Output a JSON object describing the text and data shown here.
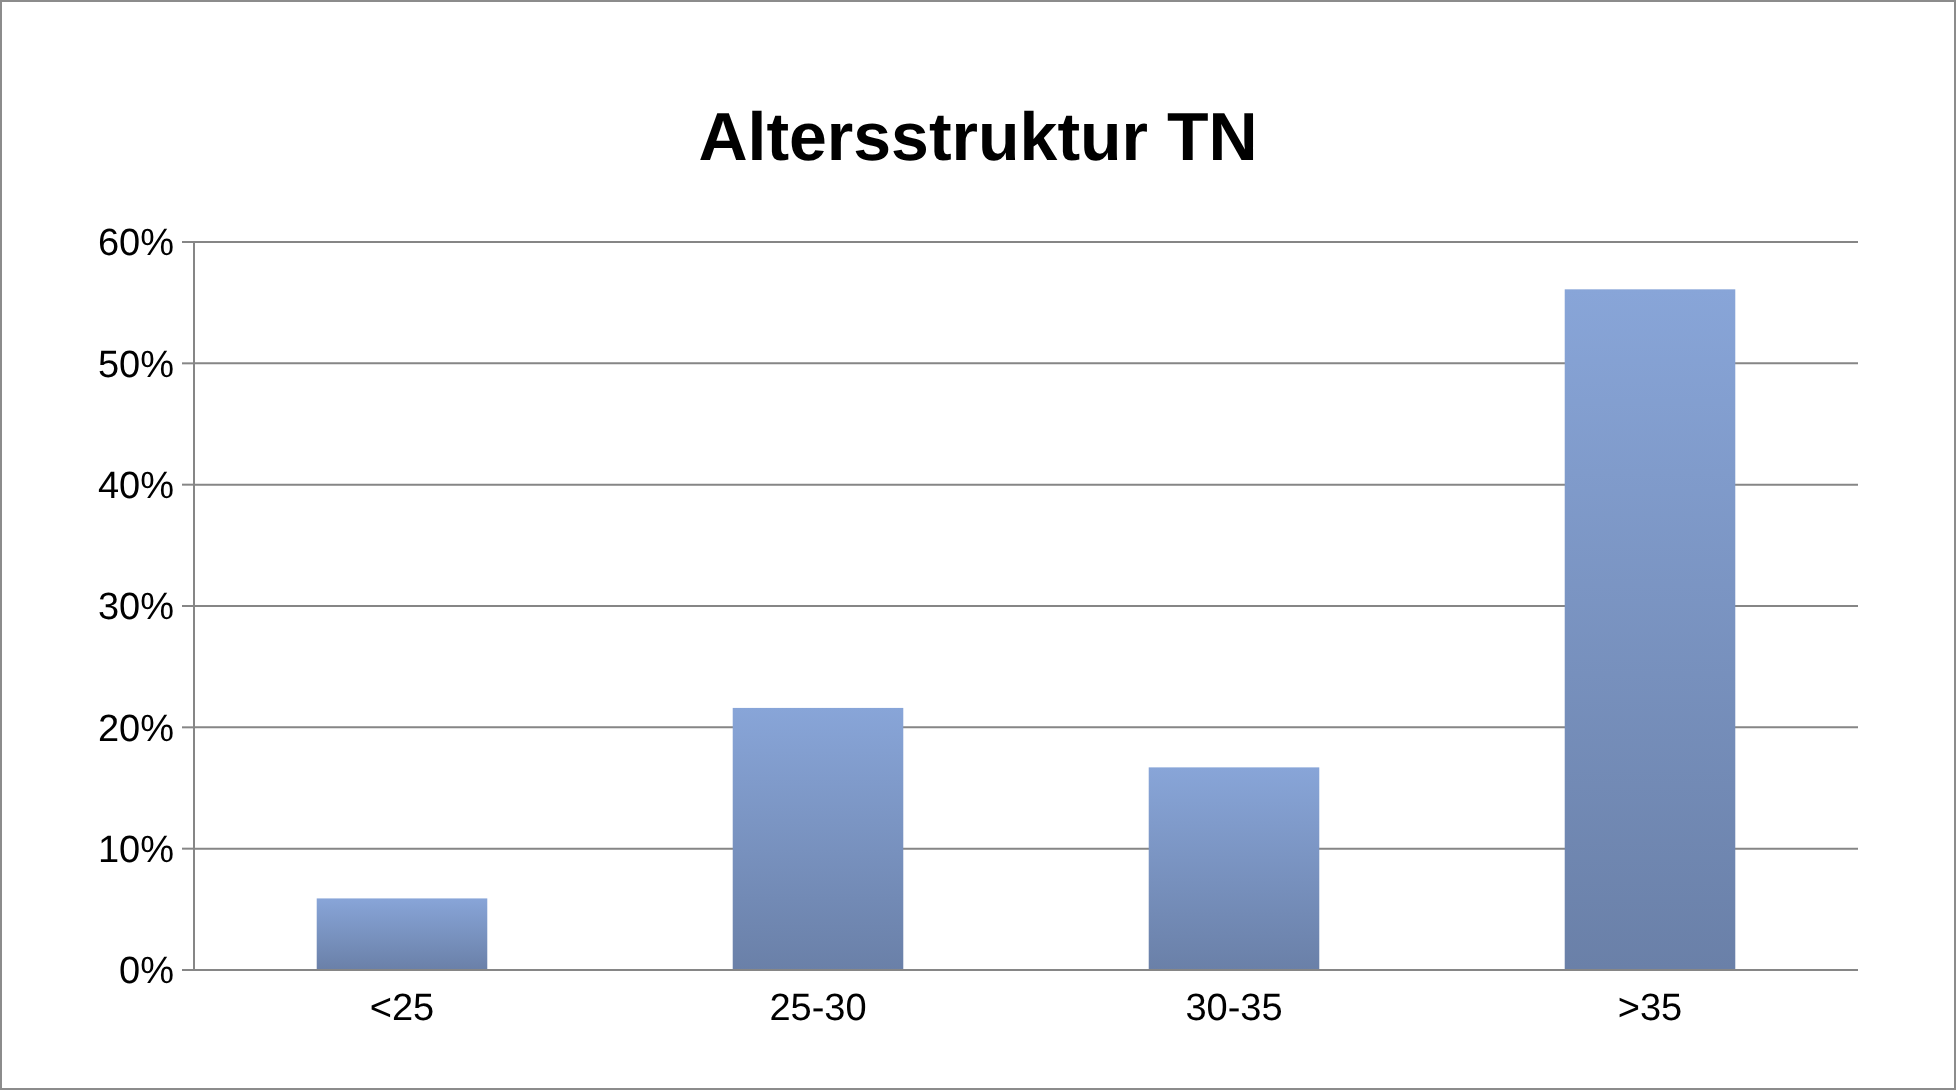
{
  "chart_data": {
    "type": "bar",
    "title": "Altersstruktur TN",
    "categories": [
      "<25",
      "25-30",
      "30-35",
      ">35"
    ],
    "values": [
      5.9,
      21.6,
      16.7,
      56.1
    ],
    "color": "#7a94c2",
    "ylim": [
      0,
      60
    ],
    "yticks": [
      {
        "value": 0,
        "label": "0%"
      },
      {
        "value": 10,
        "label": "10%"
      },
      {
        "value": 20,
        "label": "20%"
      },
      {
        "value": 30,
        "label": "30%"
      },
      {
        "value": 40,
        "label": "40%"
      },
      {
        "value": 50,
        "label": "50%"
      },
      {
        "value": 60,
        "label": "60%"
      }
    ],
    "grid": "y"
  }
}
